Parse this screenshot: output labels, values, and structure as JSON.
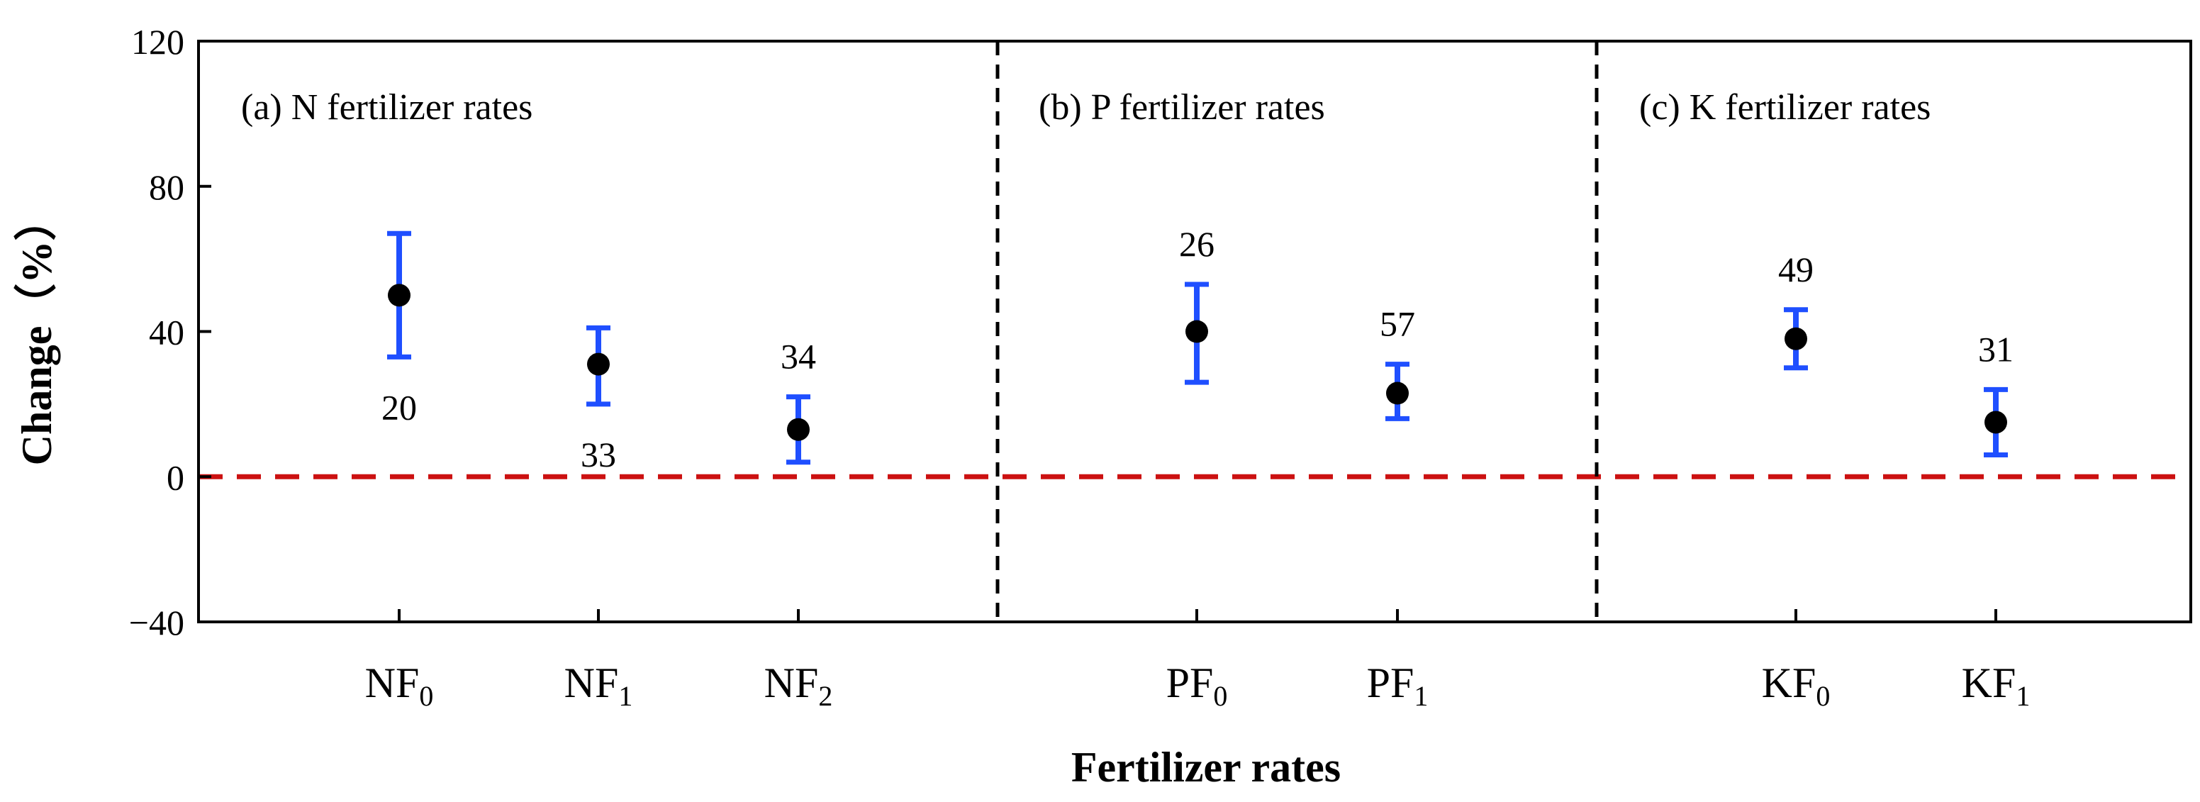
{
  "chart_data": {
    "type": "scatter",
    "subtype": "point-with-error-bars",
    "xlabel": "Fertilizer rates",
    "ylabel": "Change（%）",
    "ylim": [
      -40,
      120
    ],
    "yticks": [
      -40,
      0,
      40,
      80,
      120
    ],
    "reference_line": {
      "y": 0,
      "style": "dashed",
      "color": "#cc1111"
    },
    "colors": {
      "point": "#000000",
      "error_bar": "#1f4fff",
      "panel_divider": "#000000"
    },
    "panels": [
      {
        "label": "(a) N fertilizer rates",
        "categories": [
          "NF0",
          "NF1",
          "NF2"
        ]
      },
      {
        "label": "(b) P fertilizer rates",
        "categories": [
          "PF0",
          "PF1"
        ]
      },
      {
        "label": "(c) K fertilizer rates",
        "categories": [
          "KF0",
          "KF1"
        ]
      }
    ],
    "points": [
      {
        "category": "NF0",
        "base": "NF",
        "sub": "0",
        "mean": 50,
        "lower": 33,
        "upper": 67,
        "n": "20",
        "n_position": "below"
      },
      {
        "category": "NF1",
        "base": "NF",
        "sub": "1",
        "mean": 31,
        "lower": 20,
        "upper": 41,
        "n": "33",
        "n_position": "below"
      },
      {
        "category": "NF2",
        "base": "NF",
        "sub": "2",
        "mean": 13,
        "lower": 4,
        "upper": 22,
        "n": "34",
        "n_position": "above"
      },
      {
        "category": "PF0",
        "base": "PF",
        "sub": "0",
        "mean": 40,
        "lower": 26,
        "upper": 53,
        "n": "26",
        "n_position": "above"
      },
      {
        "category": "PF1",
        "base": "PF",
        "sub": "1",
        "mean": 23,
        "lower": 16,
        "upper": 31,
        "n": "57",
        "n_position": "above"
      },
      {
        "category": "KF0",
        "base": "KF",
        "sub": "0",
        "mean": 38,
        "lower": 30,
        "upper": 46,
        "n": "49",
        "n_position": "above"
      },
      {
        "category": "KF1",
        "base": "KF",
        "sub": "1",
        "mean": 15,
        "lower": 6,
        "upper": 24,
        "n": "31",
        "n_position": "above"
      }
    ]
  }
}
